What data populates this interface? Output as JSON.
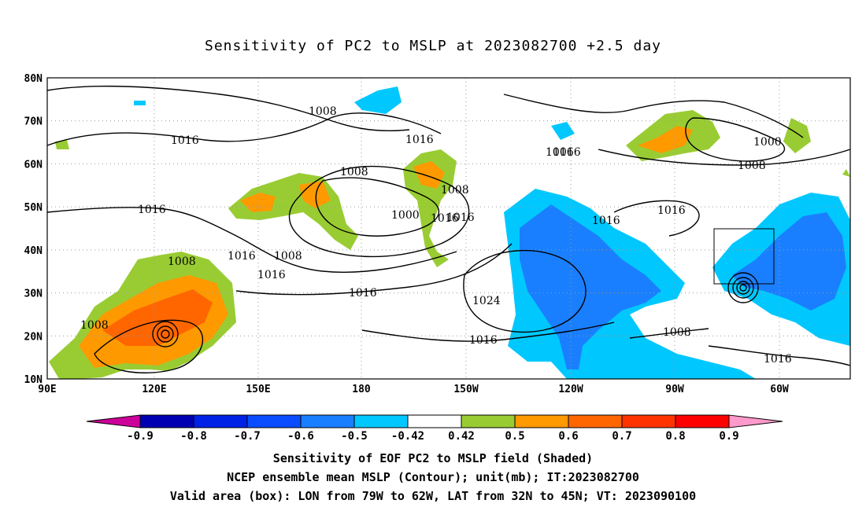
{
  "title": "Sensitivity of PC2 to MSLP at 2023082700 +2.5 day",
  "map": {
    "lat_labels": [
      "80N",
      "70N",
      "60N",
      "50N",
      "40N",
      "30N",
      "20N",
      "10N"
    ],
    "lon_labels": [
      "90E",
      "120E",
      "150E",
      "180",
      "150W",
      "120W",
      "90W",
      "60W"
    ],
    "lat_range": [
      10,
      80
    ],
    "lon_range": [
      "90E",
      "45W"
    ],
    "gridlines": true,
    "contour_labels": [
      "1008",
      "1016",
      "1016",
      "1016",
      "1008",
      "1016",
      "1016",
      "1000",
      "1008",
      "1016",
      "1008",
      "1000",
      "1016",
      "1016",
      "1016",
      "1016",
      "1016",
      "1016",
      "1008",
      "1016",
      "1008",
      "1008",
      "1024",
      "1016",
      "1008"
    ],
    "valid_area_box": {
      "lon": [
        "79W",
        "62W"
      ],
      "lat": [
        "32N",
        "45N"
      ]
    },
    "colors": {
      "positive": "#9acd32",
      "orange": "#ff9900",
      "red": "#ff5500",
      "negative": "#00bfff",
      "blue": "#1e6fff"
    }
  },
  "colorbar": {
    "labels": [
      "-0.9",
      "-0.8",
      "-0.7",
      "-0.6",
      "-0.5",
      "-0.42",
      "0.42",
      "0.5",
      "0.6",
      "0.7",
      "0.8",
      "0.9"
    ],
    "colors": [
      "#cc0099",
      "#0000b3",
      "#0022e6",
      "#0a4cff",
      "#1a7fff",
      "#00c8ff",
      "#ffffff",
      "#99cc33",
      "#ff9900",
      "#ff6600",
      "#ff3300",
      "#ff0000",
      "#ff99cc"
    ]
  },
  "captions": {
    "line1": "Sensitivity of EOF PC2 to MSLP field (Shaded)",
    "line2": "NCEP ensemble mean MSLP (Contour); unit(mb); IT:2023082700",
    "line3": "Valid area (box): LON from 79W to 62W, LAT from 32N to 45N; VT: 2023090100"
  }
}
